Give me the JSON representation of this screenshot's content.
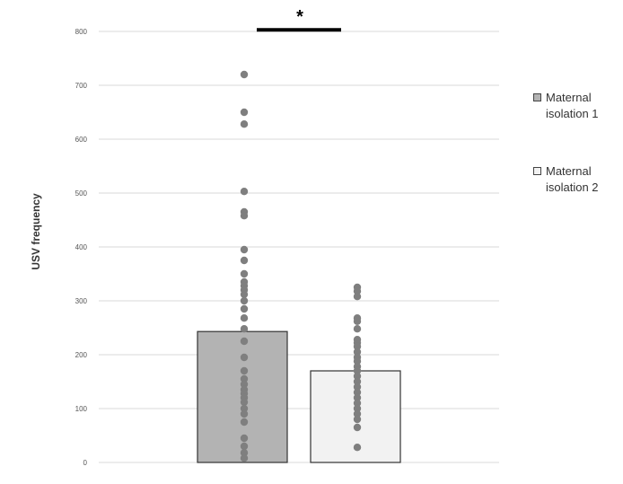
{
  "chart_data": {
    "type": "bar",
    "title": "",
    "xlabel": "",
    "ylabel": "USV frequency",
    "ylim": [
      0,
      800
    ],
    "yticks": [
      0,
      100,
      200,
      300,
      400,
      500,
      600,
      700,
      800
    ],
    "grid": true,
    "legend_position": "right",
    "categories": [
      "Maternal isolation 1",
      "Maternal isolation 2"
    ],
    "series": [
      {
        "name": "Maternal isolation 1",
        "value": 243,
        "color": "#b3b3b3",
        "points": [
          720,
          650,
          628,
          503,
          465,
          458,
          395,
          375,
          350,
          335,
          328,
          320,
          312,
          300,
          285,
          268,
          248,
          225,
          195,
          170,
          155,
          145,
          135,
          128,
          120,
          112,
          100,
          90,
          75,
          45,
          30,
          18,
          8
        ]
      },
      {
        "name": "Maternal isolation 2",
        "value": 170,
        "color": "#f2f2f2",
        "points": [
          325,
          318,
          308,
          268,
          262,
          248,
          228,
          222,
          215,
          205,
          195,
          188,
          178,
          170,
          160,
          150,
          140,
          130,
          120,
          110,
          100,
          90,
          80,
          65,
          28
        ]
      }
    ],
    "annotations": [
      {
        "text": "*",
        "between": [
          "Maternal isolation 1",
          "Maternal isolation 2"
        ],
        "at_value": 803
      }
    ],
    "legend": {
      "items": [
        {
          "line1": "Maternal",
          "line2": "isolation 1",
          "color": "#b3b3b3"
        },
        {
          "line1": "Maternal",
          "line2": "isolation 2",
          "color": "#f2f2f2"
        }
      ]
    },
    "colors": {
      "grid": "#d9d9d9",
      "points": "#7f7f7f",
      "bar_border": "#333333"
    }
  }
}
